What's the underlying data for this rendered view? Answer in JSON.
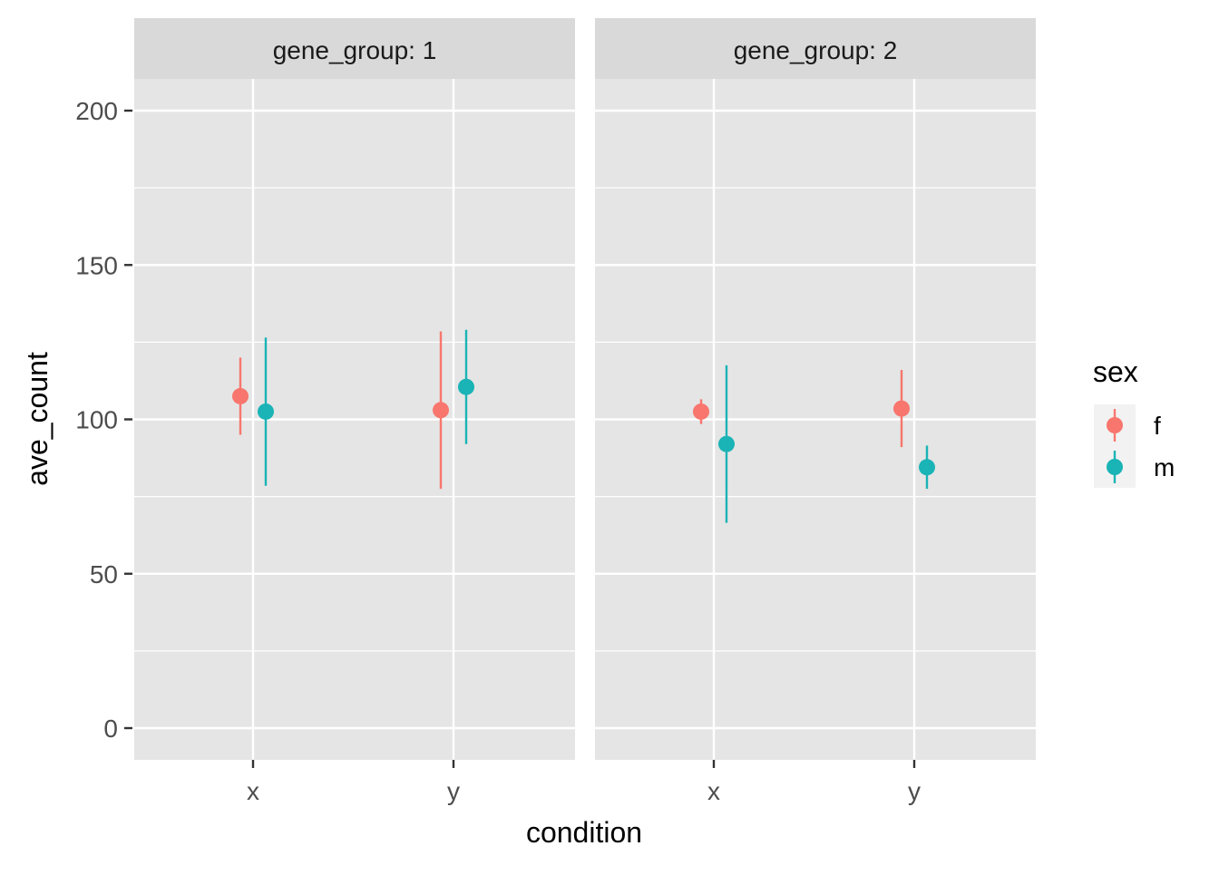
{
  "chart_data": {
    "type": "scatter",
    "subtype": "pointrange",
    "facet_label_prefix": "gene_group: ",
    "facets": [
      {
        "label": "gene_group: 1",
        "points": [
          {
            "condition": "x",
            "sex": "f",
            "y": 107.5,
            "ymin": 95,
            "ymax": 120
          },
          {
            "condition": "x",
            "sex": "m",
            "y": 102.5,
            "ymin": 78.5,
            "ymax": 126.5
          },
          {
            "condition": "y",
            "sex": "f",
            "y": 103,
            "ymin": 77.5,
            "ymax": 128.5
          },
          {
            "condition": "y",
            "sex": "m",
            "y": 110.5,
            "ymin": 92,
            "ymax": 129
          }
        ]
      },
      {
        "label": "gene_group: 2",
        "points": [
          {
            "condition": "x",
            "sex": "f",
            "y": 102.5,
            "ymin": 98.5,
            "ymax": 106.5
          },
          {
            "condition": "x",
            "sex": "m",
            "y": 92,
            "ymin": 66.5,
            "ymax": 117.5
          },
          {
            "condition": "y",
            "sex": "f",
            "y": 103.5,
            "ymin": 91,
            "ymax": 116
          },
          {
            "condition": "y",
            "sex": "m",
            "y": 84.5,
            "ymin": 77.5,
            "ymax": 91.5
          }
        ]
      }
    ],
    "categories": [
      "x",
      "y"
    ],
    "xlabel": "condition",
    "ylabel": "ave_count",
    "ylim": [
      -10,
      210
    ],
    "yticks": [
      0,
      50,
      100,
      150,
      200
    ],
    "yticks_labels": [
      "0",
      "50",
      "100",
      "150",
      "200"
    ],
    "grid": true,
    "legend": {
      "title": "sex",
      "position": "right",
      "entries": [
        {
          "key": "f",
          "label": "f",
          "color": "#F8766D"
        },
        {
          "key": "m",
          "label": "m",
          "color": "#00BFC4"
        }
      ]
    }
  },
  "colors": {
    "panel_bg": "#E5E5E5",
    "strip_bg": "#D9D9D9",
    "grid": "#FFFFFF",
    "f": "#F8766D",
    "m": "#1AB3B6"
  }
}
